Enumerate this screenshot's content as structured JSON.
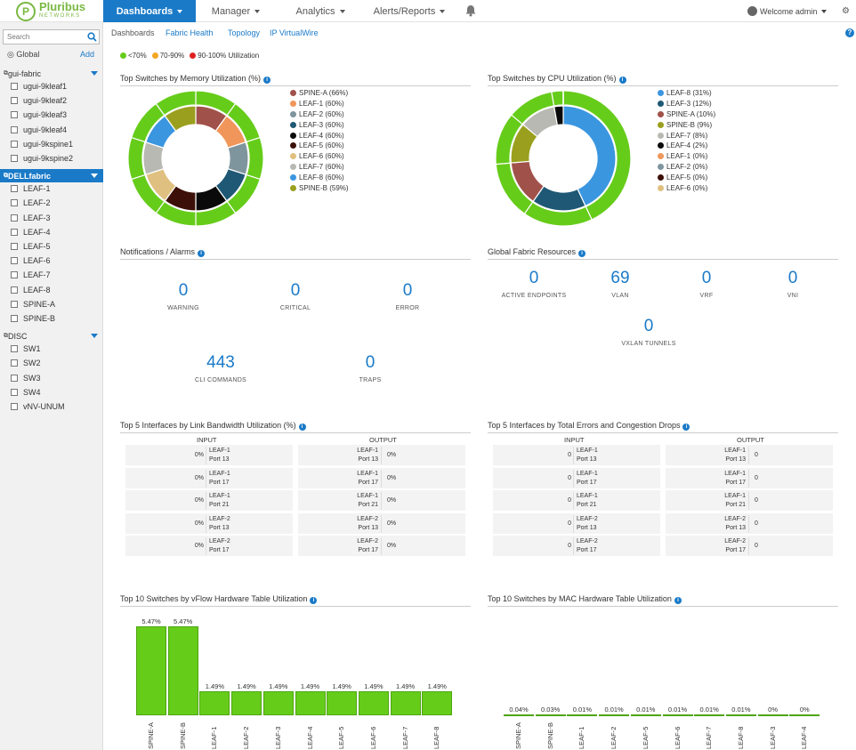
{
  "brand": {
    "name": "Pluribus",
    "sub": "NETWORKS",
    "mark": "P"
  },
  "nav": [
    {
      "label": "Dashboards",
      "active": true
    },
    {
      "label": "Manager"
    },
    {
      "label": "Analytics"
    },
    {
      "label": "Alerts/Reports"
    }
  ],
  "user": {
    "welcome": "Welcome admin"
  },
  "sidebar": {
    "search_placeholder": "Search",
    "global": "Global",
    "add": "Add",
    "groups": [
      {
        "name": "gui-fabric",
        "selected": false,
        "items": [
          "ugui-9kleaf1",
          "ugui-9kleaf2",
          "ugui-9kleaf3",
          "ugui-9kleaf4",
          "ugui-9kspine1",
          "ugui-9kspine2"
        ]
      },
      {
        "name": "DELLfabric",
        "selected": true,
        "items": [
          "LEAF-1",
          "LEAF-2",
          "LEAF-3",
          "LEAF-4",
          "LEAF-5",
          "LEAF-6",
          "LEAF-7",
          "LEAF-8",
          "SPINE-A",
          "SPINE-B"
        ]
      },
      {
        "name": "DISC",
        "selected": false,
        "items": [
          "SW1",
          "SW2",
          "SW3",
          "SW4",
          "vNV-UNUM"
        ]
      }
    ]
  },
  "subtabs": [
    {
      "label": "Dashboards",
      "active": false
    },
    {
      "label": "Fabric Health",
      "active": true
    },
    {
      "label": "Topology",
      "active": true
    },
    {
      "label": "IP VirtualWire",
      "active": true
    }
  ],
  "legend": [
    {
      "label": "<70%",
      "color": "#66cc1a"
    },
    {
      "label": "70-90%",
      "color": "#f5a623"
    },
    {
      "label": "90-100% Utilization",
      "color": "#e02020"
    }
  ],
  "memory": {
    "title": "Top Switches by Memory Utilization (%)",
    "items": [
      {
        "label": "SPINE-A (66%)",
        "color": "#a0524a",
        "value": 66
      },
      {
        "label": "LEAF-1 (60%)",
        "color": "#f0965a",
        "value": 60
      },
      {
        "label": "LEAF-2 (60%)",
        "color": "#7f959e",
        "value": 60
      },
      {
        "label": "LEAF-3 (60%)",
        "color": "#1e5874",
        "value": 60
      },
      {
        "label": "LEAF-4 (60%)",
        "color": "#0a0a0a",
        "value": 60
      },
      {
        "label": "LEAF-5 (60%)",
        "color": "#3c1008",
        "value": 60
      },
      {
        "label": "LEAF-6 (60%)",
        "color": "#e0c080",
        "value": 60
      },
      {
        "label": "LEAF-7 (60%)",
        "color": "#b9b9b3",
        "value": 60
      },
      {
        "label": "LEAF-8 (60%)",
        "color": "#3b96e0",
        "value": 60
      },
      {
        "label": "SPINE-B (59%)",
        "color": "#9aa01e",
        "value": 59
      }
    ]
  },
  "cpu": {
    "title": "Top Switches by CPU Utilization (%)",
    "items": [
      {
        "label": "LEAF-8 (31%)",
        "color": "#3b96e0",
        "value": 31
      },
      {
        "label": "LEAF-3 (12%)",
        "color": "#1e5874",
        "value": 12
      },
      {
        "label": "SPINE-A (10%)",
        "color": "#a0524a",
        "value": 10
      },
      {
        "label": "SPINE-B (9%)",
        "color": "#9aa01e",
        "value": 9
      },
      {
        "label": "LEAF-7 (8%)",
        "color": "#b9b9b3",
        "value": 8
      },
      {
        "label": "LEAF-4 (2%)",
        "color": "#0a0a0a",
        "value": 2
      },
      {
        "label": "LEAF-1 (0%)",
        "color": "#f0965a",
        "value": 0
      },
      {
        "label": "LEAF-2 (0%)",
        "color": "#7f959e",
        "value": 0
      },
      {
        "label": "LEAF-5 (0%)",
        "color": "#3c1008",
        "value": 0
      },
      {
        "label": "LEAF-6 (0%)",
        "color": "#e0c080",
        "value": 0
      }
    ]
  },
  "notifications": {
    "title": "Notifications / Alarms",
    "stats": [
      {
        "value": "0",
        "label": "WARNING"
      },
      {
        "value": "0",
        "label": "CRITICAL"
      },
      {
        "value": "0",
        "label": "ERROR"
      },
      {
        "value": "443",
        "label": "CLI COMMANDS"
      },
      {
        "value": "0",
        "label": "TRAPS"
      }
    ]
  },
  "resources": {
    "title": "Global Fabric Resources",
    "stats": [
      {
        "value": "0",
        "label": "ACTIVE ENDPOINTS"
      },
      {
        "value": "69",
        "label": "VLAN"
      },
      {
        "value": "0",
        "label": "VRF"
      },
      {
        "value": "0",
        "label": "VNI"
      },
      {
        "value": "0",
        "label": "VXLAN TUNNELS"
      }
    ]
  },
  "bandwidth": {
    "title": "Top 5 Interfaces by Link Bandwidth Utilization (%)",
    "input_label": "INPUT",
    "output_label": "OUTPUT",
    "rows": [
      {
        "in_val": "0%",
        "in_sw": "LEAF-1",
        "in_port": "Port 13",
        "out_sw": "LEAF-1",
        "out_port": "Port 13",
        "out_val": "0%"
      },
      {
        "in_val": "0%",
        "in_sw": "LEAF-1",
        "in_port": "Port 17",
        "out_sw": "LEAF-1",
        "out_port": "Port 17",
        "out_val": "0%"
      },
      {
        "in_val": "0%",
        "in_sw": "LEAF-1",
        "in_port": "Port 21",
        "out_sw": "LEAF-1",
        "out_port": "Port 21",
        "out_val": "0%"
      },
      {
        "in_val": "0%",
        "in_sw": "LEAF-2",
        "in_port": "Port 13",
        "out_sw": "LEAF-2",
        "out_port": "Port 13",
        "out_val": "0%"
      },
      {
        "in_val": "0%",
        "in_sw": "LEAF-2",
        "in_port": "Port 17",
        "out_sw": "LEAF-2",
        "out_port": "Port 17",
        "out_val": "0%"
      }
    ]
  },
  "errors": {
    "title": "Top 5 Interfaces by Total Errors and Congestion Drops",
    "input_label": "INPUT",
    "output_label": "OUTPUT",
    "rows": [
      {
        "in_val": "0",
        "in_sw": "LEAF-1",
        "in_port": "Port 13",
        "out_sw": "LEAF-1",
        "out_port": "Port 13",
        "out_val": "0"
      },
      {
        "in_val": "0",
        "in_sw": "LEAF-1",
        "in_port": "Port 17",
        "out_sw": "LEAF-1",
        "out_port": "Port 17",
        "out_val": "0"
      },
      {
        "in_val": "0",
        "in_sw": "LEAF-1",
        "in_port": "Port 21",
        "out_sw": "LEAF-1",
        "out_port": "Port 21",
        "out_val": "0"
      },
      {
        "in_val": "0",
        "in_sw": "LEAF-2",
        "in_port": "Port 13",
        "out_sw": "LEAF-2",
        "out_port": "Port 13",
        "out_val": "0"
      },
      {
        "in_val": "0",
        "in_sw": "LEAF-2",
        "in_port": "Port 17",
        "out_sw": "LEAF-2",
        "out_port": "Port 17",
        "out_val": "0"
      }
    ]
  },
  "chart_data": [
    {
      "type": "bar",
      "title": "Top 10 Switches by vFlow Hardware Table Utilization",
      "categories": [
        "SPINE-A",
        "SPINE-B",
        "LEAF-1",
        "LEAF-2",
        "LEAF-3",
        "LEAF-4",
        "LEAF-5",
        "LEAF-6",
        "LEAF-7",
        "LEAF-8"
      ],
      "values": [
        5.47,
        5.47,
        1.49,
        1.49,
        1.49,
        1.49,
        1.49,
        1.49,
        1.49,
        1.49
      ],
      "value_labels": [
        "5.47%",
        "5.47%",
        "1.49%",
        "1.49%",
        "1.49%",
        "1.49%",
        "1.49%",
        "1.49%",
        "1.49%",
        "1.49%"
      ],
      "ylim": [
        0,
        5.47
      ]
    },
    {
      "type": "bar",
      "title": "Top 10 Switches by MAC Hardware Table Utilization",
      "categories": [
        "SPINE-A",
        "SPINE-B",
        "LEAF-1",
        "LEAF-2",
        "LEAF-5",
        "LEAF-6",
        "LEAF-7",
        "LEAF-8",
        "LEAF-3",
        "LEAF-4"
      ],
      "values": [
        0.04,
        0.03,
        0.01,
        0.01,
        0.01,
        0.01,
        0.01,
        0.01,
        0,
        0
      ],
      "value_labels": [
        "0.04%",
        "0.03%",
        "0.01%",
        "0.01%",
        "0.01%",
        "0.01%",
        "0.01%",
        "0.01%",
        "0%",
        "0%"
      ],
      "ylim": [
        0,
        5.47
      ]
    }
  ]
}
